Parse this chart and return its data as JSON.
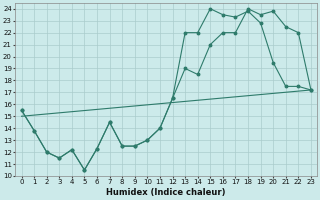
{
  "xlabel": "Humidex (Indice chaleur)",
  "bg_color": "#cceaea",
  "grid_color": "#aacccc",
  "line_color": "#2e7b6b",
  "xlim": [
    -0.5,
    23.5
  ],
  "ylim": [
    10,
    24.5
  ],
  "xticks": [
    0,
    1,
    2,
    3,
    4,
    5,
    6,
    7,
    8,
    9,
    10,
    11,
    12,
    13,
    14,
    15,
    16,
    17,
    18,
    19,
    20,
    21,
    22,
    23
  ],
  "yticks": [
    10,
    11,
    12,
    13,
    14,
    15,
    16,
    17,
    18,
    19,
    20,
    21,
    22,
    23,
    24
  ],
  "line1_x": [
    0,
    1,
    2,
    3,
    4,
    5,
    6,
    7,
    8,
    9,
    10,
    11,
    12,
    13,
    14,
    15,
    16,
    17,
    18,
    19,
    20,
    21,
    22,
    23
  ],
  "line1_y": [
    15.5,
    13.8,
    12.0,
    11.5,
    12.2,
    10.5,
    12.3,
    14.5,
    12.5,
    12.5,
    13.0,
    14.0,
    16.5,
    19.0,
    18.5,
    21.0,
    22.0,
    22.0,
    24.0,
    23.5,
    23.8,
    22.5,
    22.0,
    17.2
  ],
  "line2_x": [
    0,
    1,
    2,
    3,
    4,
    5,
    6,
    7,
    8,
    9,
    10,
    11,
    12,
    13,
    14,
    15,
    16,
    17,
    18,
    19,
    20,
    21,
    22,
    23
  ],
  "line2_y": [
    15.5,
    13.8,
    12.0,
    11.5,
    12.2,
    10.5,
    12.3,
    14.5,
    12.5,
    12.5,
    13.0,
    14.0,
    16.5,
    22.0,
    22.0,
    24.0,
    23.5,
    23.3,
    23.8,
    22.8,
    19.5,
    17.5,
    17.5,
    17.2
  ],
  "line3_x": [
    0,
    23
  ],
  "line3_y": [
    15.0,
    17.2
  ]
}
